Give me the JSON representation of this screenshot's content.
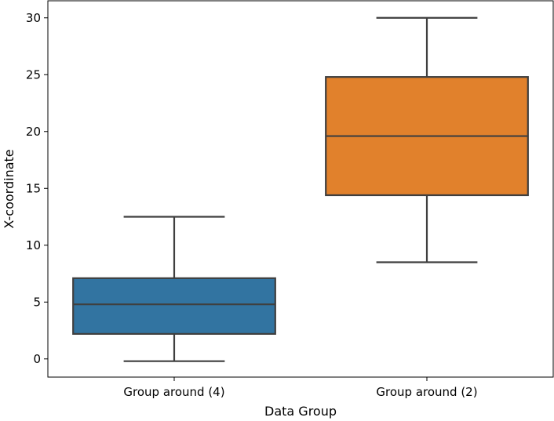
{
  "chart_data": {
    "type": "box",
    "title": "",
    "xlabel": "Data Group",
    "ylabel": "X-coordinate",
    "ylim": [
      -1.6,
      31.5
    ],
    "yticks": [
      0,
      5,
      10,
      15,
      20,
      25,
      30
    ],
    "grid": false,
    "categories": [
      "Group around (4)",
      "Group around (2)"
    ],
    "boxes": [
      {
        "category": "Group around (4)",
        "whisker_low": -0.2,
        "q1": 2.2,
        "median": 4.8,
        "q3": 7.1,
        "whisker_high": 12.5,
        "color": "#3274a1"
      },
      {
        "category": "Group around (2)",
        "whisker_low": 8.5,
        "q1": 14.4,
        "median": 19.6,
        "q3": 24.8,
        "whisker_high": 30.0,
        "color": "#e1812c"
      }
    ]
  },
  "colors": {
    "line": "#3f3f3f",
    "axis": "#000000"
  }
}
